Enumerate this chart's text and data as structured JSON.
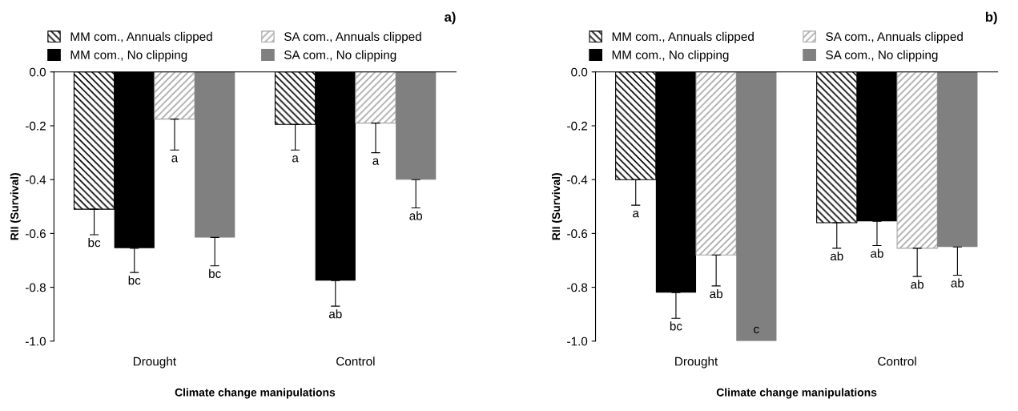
{
  "chart_data": [
    {
      "type": "bar",
      "title": "a)",
      "xlabel": "Climate change manipulations",
      "ylabel": "RII (Survival)",
      "categories": [
        "Drought",
        "Control"
      ],
      "ylim": [
        -1.0,
        0.0
      ],
      "yticks": [
        {
          "value": -1.0,
          "label": "-1.0"
        },
        {
          "value": -0.8,
          "label": "-0.8"
        },
        {
          "value": -0.6,
          "label": "-0.6"
        },
        {
          "value": -0.4,
          "label": "-0.4"
        },
        {
          "value": -0.2,
          "label": "-0.2"
        },
        {
          "value": 0.0,
          "label": "0.0"
        }
      ],
      "grid": false,
      "legend": "top",
      "series": [
        {
          "name": "MM com., Annuals clipped",
          "color": "#000000",
          "values": [
            -0.51,
            -0.195
          ],
          "errors": [
            [
              -0.605,
              -0.51
            ],
            [
              -0.29,
              -0.195
            ]
          ],
          "value_labels": [
            "bc",
            "a"
          ]
        },
        {
          "name": "MM com., No clipping",
          "color": "#000000",
          "values": [
            -0.655,
            -0.775
          ],
          "errors": [
            [
              -0.745,
              -0.655
            ],
            [
              -0.87,
              -0.775
            ]
          ],
          "value_labels": [
            "bc",
            "ab"
          ]
        },
        {
          "name": "SA com., Annuals clipped",
          "color": "#a6a6a6",
          "values": [
            -0.175,
            -0.19
          ],
          "errors": [
            [
              -0.29,
              -0.175
            ],
            [
              -0.3,
              -0.19
            ]
          ],
          "value_labels": [
            "a",
            "a"
          ]
        },
        {
          "name": "SA com., No clipping",
          "color": "#808080",
          "values": [
            -0.615,
            -0.4
          ],
          "errors": [
            [
              -0.72,
              -0.615
            ],
            [
              -0.505,
              -0.4
            ]
          ],
          "value_labels": [
            "bc",
            "ab"
          ]
        }
      ]
    },
    {
      "type": "bar",
      "title": "b)",
      "xlabel": "Climate change manipulations",
      "ylabel": "RII (Survival)",
      "categories": [
        "Drought",
        "Control"
      ],
      "ylim": [
        -1.0,
        0.0
      ],
      "yticks": [
        {
          "value": -1.0,
          "label": "-1.0"
        },
        {
          "value": -0.8,
          "label": "-0.8"
        },
        {
          "value": -0.6,
          "label": "-0.6"
        },
        {
          "value": -0.4,
          "label": "-0.4"
        },
        {
          "value": -0.2,
          "label": "-0.2"
        },
        {
          "value": 0.0,
          "label": "0.0"
        }
      ],
      "grid": false,
      "legend": "top",
      "series": [
        {
          "name": "MM com., Annuals clipped",
          "color": "#000000",
          "values": [
            -0.4,
            -0.56
          ],
          "errors": [
            [
              -0.495,
              -0.4
            ],
            [
              -0.655,
              -0.56
            ]
          ],
          "value_labels": [
            "a",
            "ab"
          ]
        },
        {
          "name": "MM com., No clipping",
          "color": "#000000",
          "values": [
            -0.82,
            -0.555
          ],
          "errors": [
            [
              -0.915,
              -0.82
            ],
            [
              -0.645,
              -0.555
            ]
          ],
          "value_labels": [
            "bc",
            "ab"
          ]
        },
        {
          "name": "SA com., Annuals clipped",
          "color": "#a6a6a6",
          "values": [
            -0.68,
            -0.655
          ],
          "errors": [
            [
              -0.795,
              -0.68
            ],
            [
              -0.76,
              -0.655
            ]
          ],
          "value_labels": [
            "ab",
            "ab"
          ]
        },
        {
          "name": "SA com., No clipping",
          "color": "#808080",
          "values": [
            -1.0,
            -0.65
          ],
          "errors": [
            null,
            [
              -0.755,
              -0.65
            ]
          ],
          "value_labels": [
            "c",
            "ab"
          ]
        }
      ]
    }
  ]
}
